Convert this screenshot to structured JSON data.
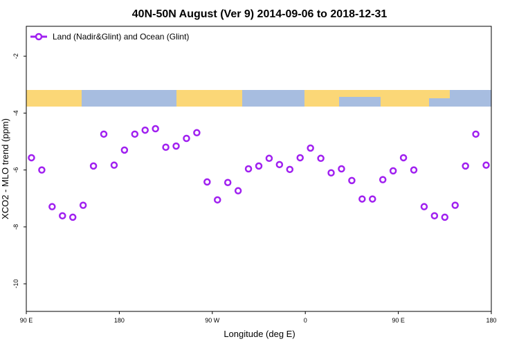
{
  "chart_data": {
    "type": "line",
    "title": "40N-50N August (Ver 9)   2014-09-06 to 2018-12-31",
    "x_label": "Longitude (deg E)",
    "y_label": "XCO2 - MLO trend (ppm)",
    "x": [
      95,
      105,
      115,
      125,
      135,
      145,
      155,
      165,
      175,
      185,
      195,
      205,
      215,
      225,
      235,
      245,
      255,
      265,
      275,
      285,
      295,
      305,
      315,
      325,
      335,
      345,
      355,
      365,
      375,
      385,
      395,
      405,
      415,
      425,
      435,
      445,
      455,
      465,
      475,
      485,
      495,
      505,
      515,
      525,
      535
    ],
    "series": [
      {
        "name": "Land (Nadir&Glint) and Ocean (Glint)",
        "color": "#a020f0",
        "values": [
          -5.57,
          -6.0,
          -7.29,
          -7.61,
          -7.66,
          -7.24,
          -5.86,
          -4.74,
          -5.83,
          -5.3,
          -4.74,
          -4.6,
          -4.55,
          -5.2,
          -5.16,
          -4.89,
          -4.69,
          -6.42,
          -7.05,
          -6.44,
          -6.73,
          -5.96,
          -5.86,
          -5.59,
          -5.81,
          -5.98,
          -5.57,
          -5.23,
          -5.59,
          -6.1,
          -5.96,
          -6.37,
          -7.02,
          -7.02,
          -6.34,
          -6.03,
          -5.57,
          -6.0,
          -7.29,
          -7.61,
          -7.66,
          -7.24,
          -5.86,
          -4.74,
          -5.83
        ]
      }
    ],
    "xlim": [
      90,
      540
    ],
    "xticks": [
      {
        "value": 90,
        "label": "90 E"
      },
      {
        "value": 180,
        "label": "180"
      },
      {
        "value": 270,
        "label": "90 W"
      },
      {
        "value": 360,
        "label": "0"
      },
      {
        "value": 450,
        "label": "90 E"
      },
      {
        "value": 540,
        "label": "180"
      }
    ],
    "ylim": [
      -10.97,
      -0.95
    ],
    "yticks": [
      -10,
      -8,
      -6,
      -4,
      -2
    ],
    "legend": "top-left"
  }
}
